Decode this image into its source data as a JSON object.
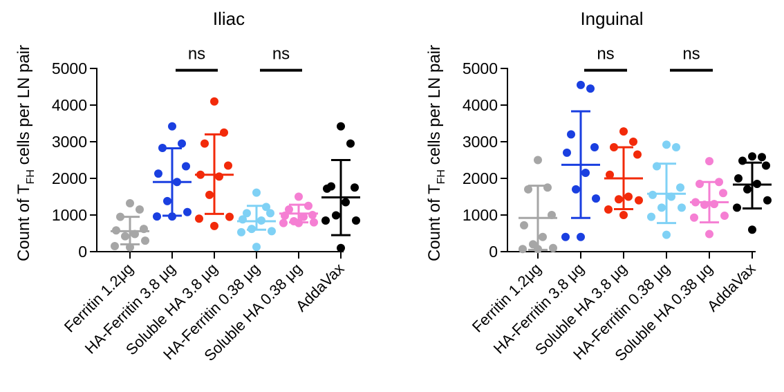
{
  "chart_data": [
    {
      "type": "scatter",
      "title": "Iliac",
      "ylabel": {
        "prefix": "Count of T",
        "subscript": "FH",
        "suffix": " cells per LN pair"
      },
      "ylim": [
        0,
        5000
      ],
      "yticks": [
        0,
        1000,
        2000,
        3000,
        4000,
        5000
      ],
      "categories": [
        "Ferritin 1.2μg",
        "HA-Ferritin 3.8 μg",
        "Soluble HA 3.8 μg",
        "HA-Ferritin 0.38 μg",
        "Soluble HA 0.38 μg",
        "AddaVax"
      ],
      "colors": [
        "#a6a6a6",
        "#1a3fe0",
        "#f22a0a",
        "#7fd1f5",
        "#f57fd3",
        "#000000"
      ],
      "series": [
        {
          "points": [
            1320,
            1150,
            950,
            620,
            580,
            480,
            420,
            300,
            150,
            120
          ],
          "mean": 560,
          "sd_low": 200,
          "sd_high": 950
        },
        {
          "points": [
            3420,
            2950,
            2830,
            2330,
            2130,
            1900,
            1380,
            1080,
            960,
            960
          ],
          "mean": 1900,
          "sd_low": 980,
          "sd_high": 2820
        },
        {
          "points": [
            4100,
            3250,
            2950,
            2350,
            2100,
            2050,
            1550,
            950,
            900,
            700
          ],
          "mean": 2100,
          "sd_low": 1030,
          "sd_high": 3200
        },
        {
          "points": [
            1610,
            1220,
            1050,
            1050,
            880,
            850,
            620,
            560,
            530,
            130
          ],
          "mean": 830,
          "sd_low": 600,
          "sd_high": 1250
        },
        {
          "points": [
            1500,
            1250,
            1150,
            1000,
            980,
            950,
            830,
            800,
            780,
            780
          ],
          "mean": 1040,
          "sd_low": 800,
          "sd_high": 1280
        },
        {
          "points": [
            3420,
            2950,
            1780,
            1750,
            1720,
            1350,
            990,
            850,
            850,
            100
          ],
          "mean": 1480,
          "sd_low": 450,
          "sd_high": 2500
        }
      ],
      "significance": [
        {
          "from": 1,
          "to": 2,
          "y": 4950,
          "label": "ns"
        },
        {
          "from": 3,
          "to": 4,
          "y": 4950,
          "label": "ns"
        }
      ]
    },
    {
      "type": "scatter",
      "title": "Inguinal",
      "ylabel": {
        "prefix": "Count of T",
        "subscript": "FH",
        "suffix": " cells per LN pair"
      },
      "ylim": [
        0,
        5000
      ],
      "yticks": [
        0,
        1000,
        2000,
        3000,
        4000,
        5000
      ],
      "categories": [
        "Ferritin 1.2μg",
        "HA-Ferritin 3.8 μg",
        "Soluble HA 3.8 μg",
        "HA-Ferritin 0.38 μg",
        "Soluble HA 0.38 μg",
        "AddaVax"
      ],
      "colors": [
        "#a6a6a6",
        "#1a3fe0",
        "#f22a0a",
        "#7fd1f5",
        "#f57fd3",
        "#000000"
      ],
      "series": [
        {
          "points": [
            2500,
            1750,
            1700,
            1000,
            720,
            400,
            200,
            100,
            70,
            70
          ],
          "mean": 920,
          "sd_low": 50,
          "sd_high": 1800
        },
        {
          "points": [
            4550,
            4450,
            3200,
            2850,
            2700,
            2150,
            1700,
            1450,
            400,
            400
          ],
          "mean": 2370,
          "sd_low": 920,
          "sd_high": 3830
        },
        {
          "points": [
            3280,
            3000,
            2850,
            2650,
            2100,
            1500,
            1430,
            1400,
            1150,
            1000
          ],
          "mean": 2000,
          "sd_low": 1160,
          "sd_high": 2850
        },
        {
          "points": [
            2920,
            2850,
            2330,
            1750,
            1550,
            1500,
            1200,
            1200,
            950,
            460
          ],
          "mean": 1580,
          "sd_low": 780,
          "sd_high": 2400
        },
        {
          "points": [
            2470,
            1900,
            1850,
            1600,
            1350,
            1300,
            1280,
            980,
            930,
            480
          ],
          "mean": 1350,
          "sd_low": 800,
          "sd_high": 1900
        },
        {
          "points": [
            2600,
            2580,
            2480,
            2350,
            2000,
            1850,
            1700,
            1400,
            1200,
            600
          ],
          "mean": 1830,
          "sd_low": 1180,
          "sd_high": 2430
        }
      ],
      "significance": [
        {
          "from": 1,
          "to": 2,
          "y": 4950,
          "label": "ns"
        },
        {
          "from": 3,
          "to": 4,
          "y": 4950,
          "label": "ns"
        }
      ]
    }
  ]
}
